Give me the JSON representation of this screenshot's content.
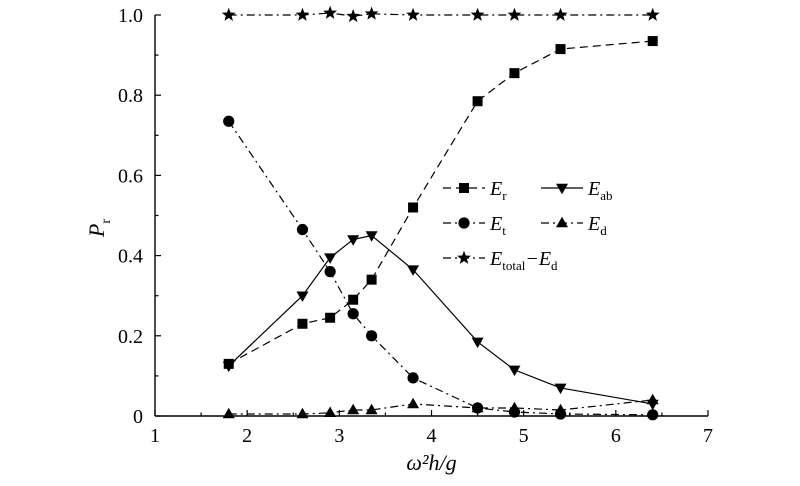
{
  "chart_data": {
    "type": "line",
    "xlabel": "ω²h/g",
    "ylabel": "P",
    "ylabel_sub": "r",
    "xlim": [
      1,
      7
    ],
    "ylim": [
      0,
      1.0
    ],
    "xticks": [
      1,
      2,
      3,
      4,
      5,
      6,
      7
    ],
    "yticks": [
      0,
      0.2,
      0.4,
      0.6,
      0.8,
      1.0
    ],
    "xtick_labels": [
      "1",
      "2",
      "3",
      "4",
      "5",
      "6",
      "7"
    ],
    "ytick_labels": [
      "0",
      "0.2",
      "0.4",
      "0.6",
      "0.8",
      "1.0"
    ],
    "grid": false,
    "legend_placement": "center-right",
    "series": [
      {
        "id": "Er",
        "name": "E",
        "name_sub": "r",
        "marker": "square",
        "dash": "dashed",
        "x": [
          1.8,
          2.6,
          2.9,
          3.15,
          3.35,
          3.8,
          4.5,
          4.9,
          5.4,
          6.4
        ],
        "y": [
          0.13,
          0.23,
          0.245,
          0.29,
          0.34,
          0.52,
          0.785,
          0.855,
          0.915,
          0.935
        ]
      },
      {
        "id": "Eab",
        "name": "E",
        "name_sub": "ab",
        "marker": "triangle-down",
        "dash": "solid",
        "x": [
          1.8,
          2.6,
          2.9,
          3.15,
          3.35,
          3.8,
          4.5,
          4.9,
          5.4,
          6.4
        ],
        "y": [
          0.125,
          0.3,
          0.395,
          0.44,
          0.45,
          0.365,
          0.185,
          0.115,
          0.07,
          0.03
        ]
      },
      {
        "id": "Et",
        "name": "E",
        "name_sub": "t",
        "marker": "circle",
        "dash": "dash-dot",
        "x": [
          1.8,
          2.6,
          2.9,
          3.15,
          3.35,
          3.8,
          4.5,
          4.9,
          5.4,
          6.4
        ],
        "y": [
          0.735,
          0.465,
          0.36,
          0.255,
          0.2,
          0.095,
          0.02,
          0.01,
          0.005,
          0.003
        ]
      },
      {
        "id": "Ed",
        "name": "E",
        "name_sub": "d",
        "marker": "triangle-up",
        "dash": "dash-dot",
        "x": [
          1.8,
          2.6,
          2.9,
          3.15,
          3.35,
          3.8,
          4.5,
          4.9,
          5.4,
          6.4
        ],
        "y": [
          0.005,
          0.005,
          0.008,
          0.015,
          0.015,
          0.03,
          0.02,
          0.02,
          0.015,
          0.04
        ]
      },
      {
        "id": "Etotal",
        "name": "E",
        "name_sub": "total",
        "name_suffix": "−E",
        "name_suffix_sub": "d",
        "marker": "star",
        "dash": "dash-dot",
        "x": [
          1.8,
          2.6,
          2.9,
          3.15,
          3.35,
          3.8,
          4.5,
          4.9,
          5.4,
          6.4
        ],
        "y": [
          1.0,
          1.0,
          1.005,
          0.997,
          1.003,
          1.0,
          1.0,
          1.0,
          1.0,
          1.0
        ]
      }
    ]
  }
}
